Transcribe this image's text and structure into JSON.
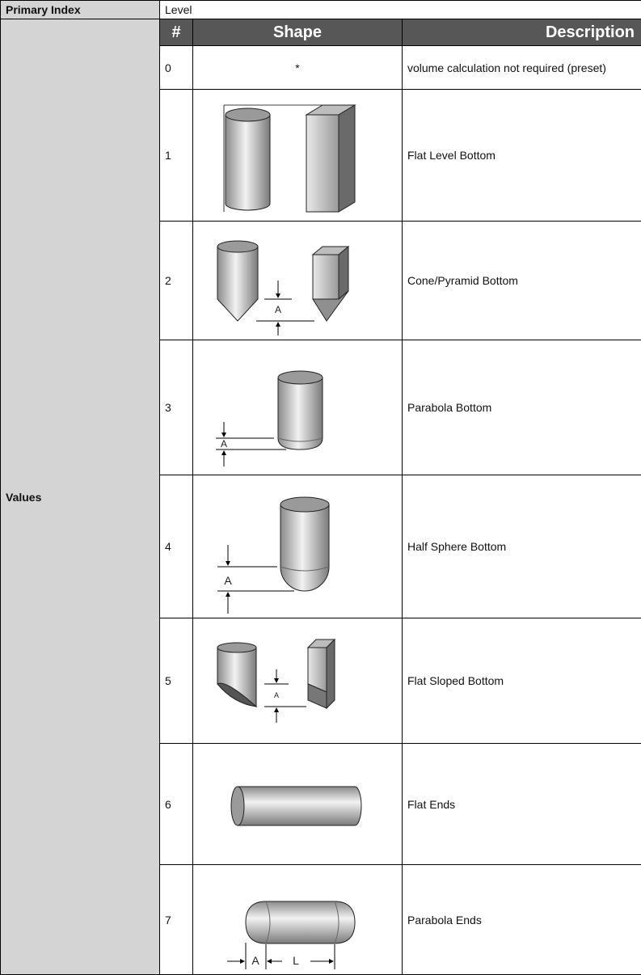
{
  "header": {
    "label": "Primary Index",
    "value": "Level"
  },
  "values_label": "Values",
  "columns": [
    "#",
    "Shape",
    "Description"
  ],
  "rows": [
    {
      "number": "0",
      "shape": "*",
      "description": "volume calculation not required (preset)"
    },
    {
      "number": "1",
      "description": "Flat Level Bottom"
    },
    {
      "number": "2",
      "shape_labels": [
        "A"
      ],
      "description": "Cone/Pyramid Bottom"
    },
    {
      "number": "3",
      "shape_labels": [
        "A"
      ],
      "description": "Parabola Bottom"
    },
    {
      "number": "4",
      "shape_labels": [
        "A"
      ],
      "description": "Half Sphere Bottom"
    },
    {
      "number": "5",
      "shape_labels": [
        "A"
      ],
      "description": "Flat Sloped Bottom"
    },
    {
      "number": "6",
      "description": "Flat Ends"
    },
    {
      "number": "7",
      "shape_labels": [
        "A",
        "L"
      ],
      "description": "Parabola Ends"
    }
  ]
}
